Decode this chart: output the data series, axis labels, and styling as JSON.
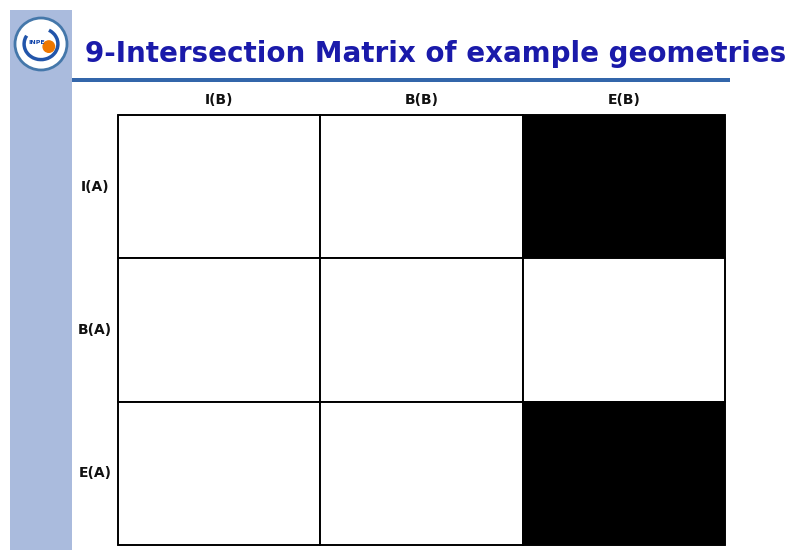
{
  "title": "9-Intersection Matrix of example geometries",
  "title_fontsize": 20,
  "title_color": "#1a1aaa",
  "col_labels": [
    "I(B)",
    "B(B)",
    "E(B)"
  ],
  "row_labels": [
    "I(A)",
    "B(A)",
    "E(A)"
  ],
  "label_fontsize": 10,
  "bg_color": "#ffffff",
  "left_panel_color": "#aabbdd",
  "hex_fill": "#c8d0f0",
  "hex_edge": "#8899bb",
  "dia_fill": "#f5c8c8",
  "dia_edge": "#ccaaaa",
  "black": "#000000",
  "yellow": "#e8d898",
  "white": "#ffffff"
}
